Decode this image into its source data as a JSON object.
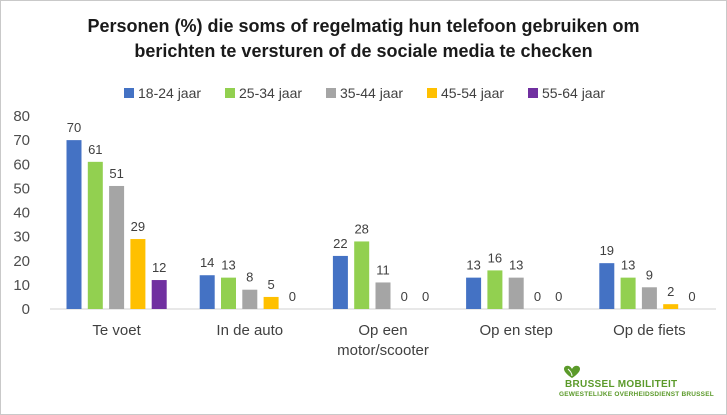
{
  "chart_data": {
    "type": "bar",
    "title_lines": [
      "Personen (%) die soms of regelmatig hun telefoon gebruiken om",
      "berichten te versturen of de sociale media te checken"
    ],
    "categories": [
      [
        "Te voet"
      ],
      [
        "In de auto"
      ],
      [
        "Op een",
        "motor/scooter"
      ],
      [
        "Op en step"
      ],
      [
        "Op de fiets"
      ]
    ],
    "series": [
      {
        "name": "18-24 jaar",
        "color": "#4472c4",
        "values": [
          70,
          14,
          22,
          13,
          19
        ]
      },
      {
        "name": "25-34 jaar",
        "color": "#92d050",
        "values": [
          61,
          13,
          28,
          16,
          13
        ]
      },
      {
        "name": "35-44 jaar",
        "color": "#a5a5a5",
        "values": [
          51,
          8,
          11,
          13,
          9
        ]
      },
      {
        "name": "45-54 jaar",
        "color": "#ffc000",
        "values": [
          29,
          5,
          0,
          0,
          2
        ]
      },
      {
        "name": "55-64 jaar",
        "color": "#7030a0",
        "values": [
          12,
          0,
          0,
          0,
          0
        ]
      }
    ],
    "ylim": [
      0,
      80
    ],
    "yticks": [
      0,
      10,
      20,
      30,
      40,
      50,
      60,
      70,
      80
    ],
    "grid": false,
    "legend_position": "top"
  },
  "logo": {
    "name": "BRUSSEL MOBILITEIT",
    "subtitle": "GEWESTELIJKE OVERHEIDSDIENST BRUSSEL",
    "icon": "heart-leaf-icon",
    "color": "#5b9a2a"
  }
}
